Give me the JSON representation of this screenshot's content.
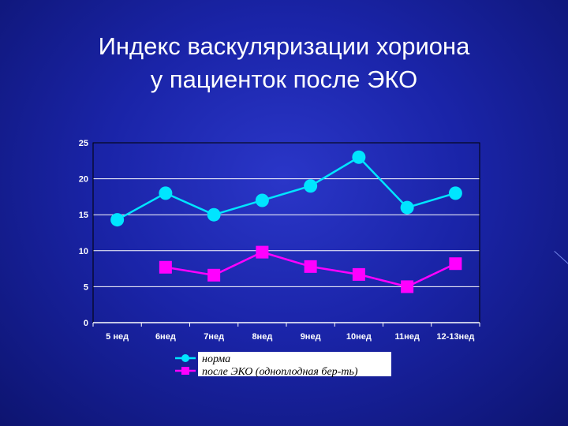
{
  "title": {
    "line1": "Индекс васкуляризации хориона",
    "line2": "у пациенток после ЭКО"
  },
  "colors": {
    "series1": "#00e5ff",
    "series2": "#ff00ff",
    "plot_border": "#000000",
    "grid": "#ffffff",
    "legend_bg": "#ffffff"
  },
  "chart_data": {
    "type": "line",
    "title": "",
    "xlabel": "",
    "ylabel": "",
    "categories": [
      "5 нед",
      "6нед",
      "7нед",
      "8нед",
      "9нед",
      "10нед",
      "11нед",
      "12-13нед"
    ],
    "ylim": [
      0,
      25
    ],
    "yticks": [
      0,
      5,
      10,
      15,
      20,
      25
    ],
    "grid": true,
    "legend_position": "bottom",
    "series": [
      {
        "name": "норма",
        "marker": "circle",
        "values": [
          14.3,
          18,
          15,
          17,
          19,
          23,
          16,
          18
        ]
      },
      {
        "name": "после ЭКО (одноплодная бер-ть)",
        "marker": "square",
        "values": [
          null,
          7.7,
          6.6,
          9.8,
          7.8,
          6.7,
          5,
          8.2
        ]
      }
    ]
  }
}
